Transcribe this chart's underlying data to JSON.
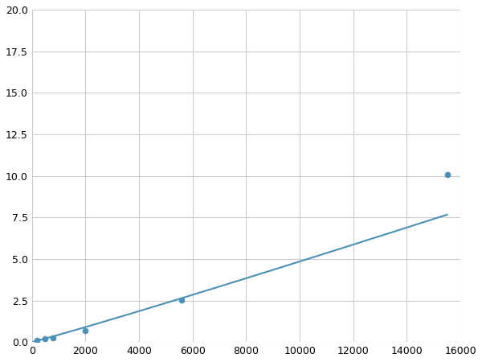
{
  "x": [
    200,
    500,
    800,
    2000,
    5600,
    15500
  ],
  "y": [
    0.12,
    0.2,
    0.25,
    0.7,
    2.55,
    10.1
  ],
  "line_color": "#4a90b8",
  "marker_color": "#4a90b8",
  "marker_size": 5,
  "line_width": 1.5,
  "xlim": [
    0,
    16000
  ],
  "ylim": [
    0,
    20.0
  ],
  "xticks": [
    0,
    2000,
    4000,
    6000,
    8000,
    10000,
    12000,
    14000,
    16000
  ],
  "yticks": [
    0.0,
    2.5,
    5.0,
    7.5,
    10.0,
    12.5,
    15.0,
    17.5,
    20.0
  ],
  "grid_color": "#cccccc",
  "background_color": "#ffffff",
  "figsize": [
    6.0,
    4.5
  ],
  "dpi": 100
}
